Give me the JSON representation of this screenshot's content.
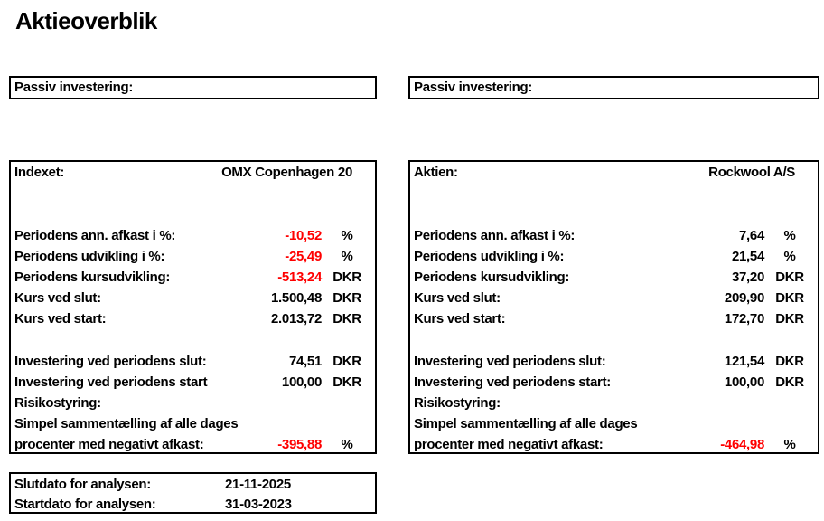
{
  "title": "Aktieoverblik",
  "colors": {
    "text": "#000000",
    "negative": "#ff0000",
    "border": "#000000",
    "background": "#ffffff"
  },
  "panels": [
    {
      "id": "index-panel",
      "header": "Passiv investering:",
      "subject_label": "Indexet:",
      "subject_name": "OMX Copenhagen 20",
      "rows": [
        {
          "label": "Periodens ann. afkast i %:",
          "value": "-10,52",
          "unit": "%",
          "negative": true
        },
        {
          "label": "Periodens udvikling i %:",
          "value": "-25,49",
          "unit": "%",
          "negative": true
        },
        {
          "label": "Periodens kursudvikling:",
          "value": "-513,24",
          "unit": "DKR",
          "negative": true
        },
        {
          "label": "Kurs ved slut:",
          "value": "1.500,48",
          "unit": "DKR",
          "negative": false
        },
        {
          "label": "Kurs ved start:",
          "value": "2.013,72",
          "unit": "DKR",
          "negative": false
        },
        {
          "spacer": true
        },
        {
          "label": "Investering ved periodens slut:",
          "value": "74,51",
          "unit": "DKR",
          "negative": false
        },
        {
          "label": "Investering ved periodens start",
          "value": "100,00",
          "unit": "DKR",
          "negative": false
        },
        {
          "label": "Risikostyring:"
        },
        {
          "label": "Simpel sammentælling af alle dages"
        },
        {
          "label": "procenter med negativt afkast:",
          "value": "-395,88",
          "unit": "%",
          "negative": true
        }
      ]
    },
    {
      "id": "stock-panel",
      "header": "Passiv investering:",
      "subject_label": "Aktien:",
      "subject_name": "Rockwool A/S",
      "rows": [
        {
          "label": "Periodens ann. afkast i %:",
          "value": "7,64",
          "unit": "%",
          "negative": false
        },
        {
          "label": "Periodens udvikling i %:",
          "value": "21,54",
          "unit": "%",
          "negative": false
        },
        {
          "label": "Periodens kursudvikling:",
          "value": "37,20",
          "unit": "DKR",
          "negative": false
        },
        {
          "label": "Kurs ved slut:",
          "value": "209,90",
          "unit": "DKR",
          "negative": false
        },
        {
          "label": "Kurs ved start:",
          "value": "172,70",
          "unit": "DKR",
          "negative": false
        },
        {
          "spacer": true
        },
        {
          "label": "Investering ved periodens slut:",
          "value": "121,54",
          "unit": "DKR",
          "negative": false
        },
        {
          "label": "Investering ved periodens start:",
          "value": "100,00",
          "unit": "DKR",
          "negative": false
        },
        {
          "label": "Risikostyring:"
        },
        {
          "label": "Simpel sammentælling af alle dages"
        },
        {
          "label": "procenter med negativt afkast:",
          "value": "-464,98",
          "unit": "%",
          "negative": true
        }
      ]
    }
  ],
  "dates": {
    "rows": [
      {
        "label": "Slutdato for analysen:",
        "value": "21-11-2025"
      },
      {
        "label": "Startdato for analysen:",
        "value": "31-03-2023"
      }
    ]
  }
}
